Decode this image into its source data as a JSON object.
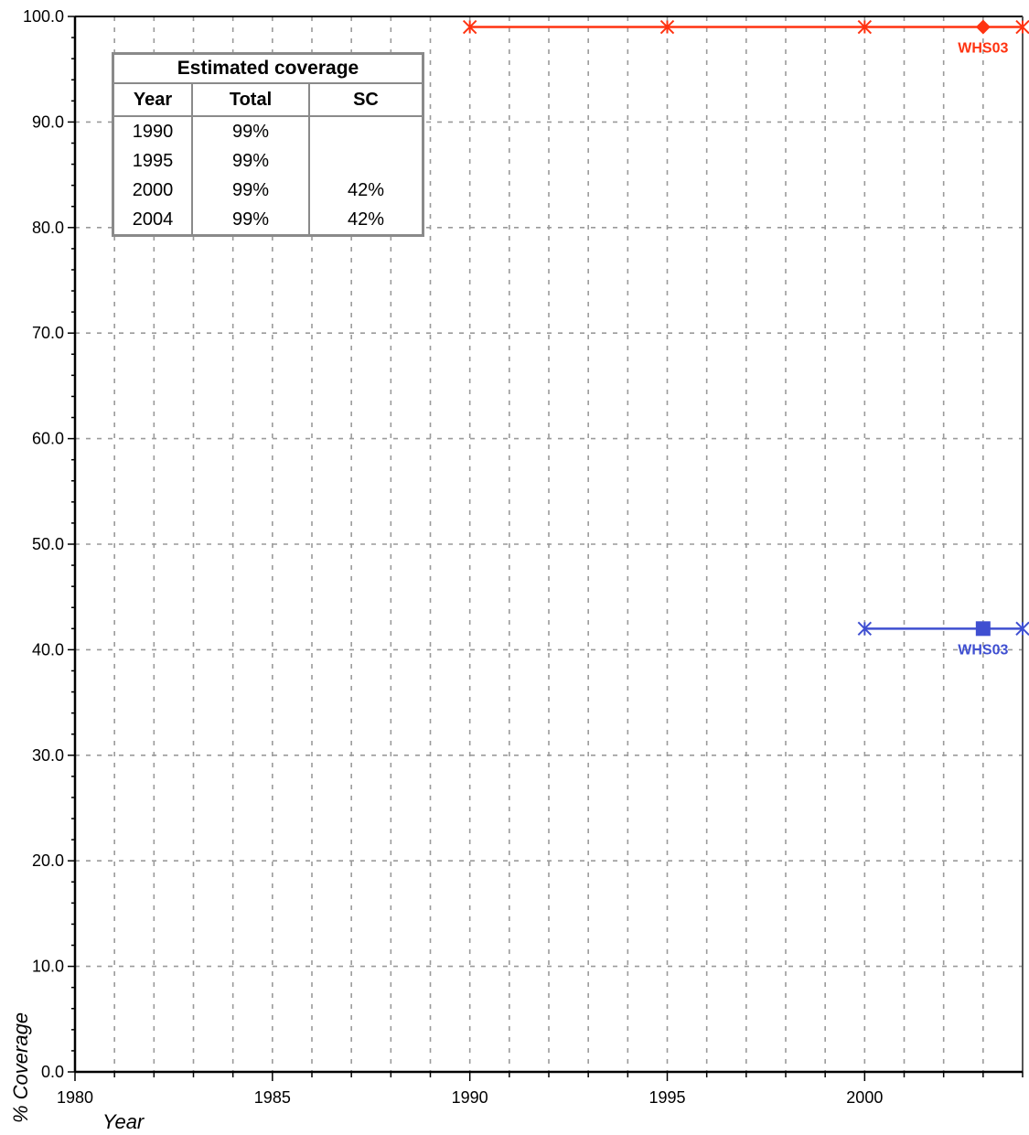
{
  "chart_data": {
    "type": "line",
    "title": "",
    "xlabel": "Year",
    "ylabel": "% Coverage",
    "xlim": [
      1980,
      2004
    ],
    "ylim": [
      0,
      100
    ],
    "x_ticks": [
      "1980",
      "1985",
      "1990",
      "1995",
      "2000"
    ],
    "y_ticks": [
      "0.0",
      "10.0",
      "20.0",
      "30.0",
      "40.0",
      "50.0",
      "60.0",
      "70.0",
      "80.0",
      "90.0",
      "100.0"
    ],
    "grid": true,
    "series": [
      {
        "color": "#ff3311",
        "points": [
          [
            1990,
            99
          ],
          [
            1995,
            99
          ],
          [
            2000,
            99
          ],
          [
            2004,
            99
          ]
        ],
        "survey_points": [
          {
            "x": 2003,
            "y": 99,
            "label": "WHS03",
            "marker": "diamond"
          }
        ]
      },
      {
        "color": "#3f4fd1",
        "points": [
          [
            2000,
            42
          ],
          [
            2004,
            42
          ]
        ],
        "survey_points": [
          {
            "x": 2003,
            "y": 42,
            "label": "WHS03",
            "marker": "square"
          }
        ]
      }
    ],
    "legend_table": {
      "caption": "Estimated coverage",
      "headers": [
        "Year",
        "Total",
        "SC"
      ],
      "rows": [
        [
          "1990",
          "99%",
          ""
        ],
        [
          "1995",
          "99%",
          ""
        ],
        [
          "2000",
          "99%",
          "42%"
        ],
        [
          "2004",
          "99%",
          "42%"
        ]
      ]
    }
  }
}
